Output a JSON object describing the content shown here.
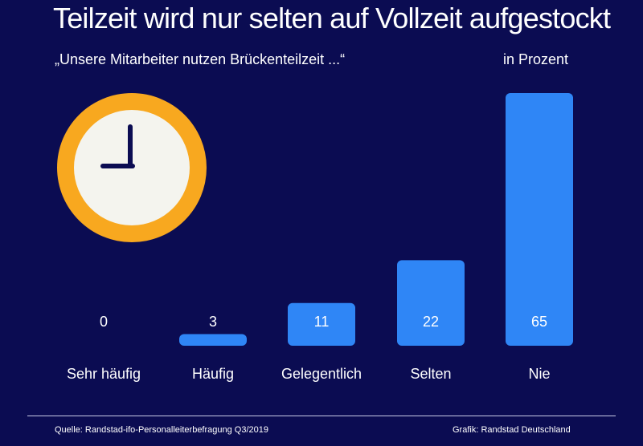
{
  "header": {
    "title": "Teilzeit wird nur selten auf Vollzeit aufgestockt",
    "subtitle": "„Unsere Mitarbeiter nutzen Brückenteilzeit ...“",
    "unit_label": "in Prozent"
  },
  "footer": {
    "source": "Quelle: Randstad-ifo-Personalleiterbefragung Q3/2019",
    "credit": "Grafik: Randstad Deutschland"
  },
  "illustration": {
    "icon": "clock-icon"
  },
  "colors": {
    "background": "#0b0c52",
    "bar": "#2f86f6",
    "clock_ring": "#f8a81f",
    "clock_face": "#f4f4ee",
    "clock_hands": "#0b0c52",
    "text": "#ffffff"
  },
  "chart_data": {
    "type": "bar",
    "categories": [
      "Sehr häufig",
      "Häufig",
      "Gelegentlich",
      "Selten",
      "Nie"
    ],
    "values": [
      0,
      3,
      11,
      22,
      65
    ],
    "data_labels": [
      "0",
      "3",
      "11",
      "22",
      "65"
    ],
    "unit": "in Prozent",
    "ylim": [
      0,
      65
    ],
    "grid": false,
    "legend": "none"
  }
}
